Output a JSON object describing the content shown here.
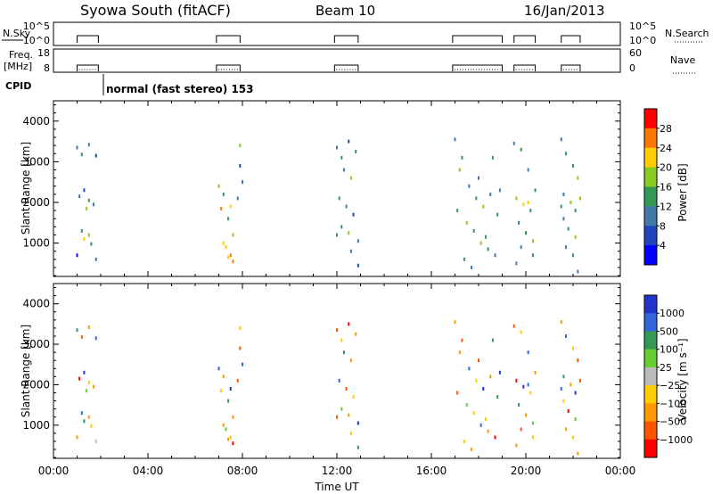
{
  "header": {
    "station": "Syowa South (fitACF)",
    "beam": "Beam 10",
    "date": "16/Jan/2013"
  },
  "strip_panels": {
    "nsky": {
      "label": "N.Sky",
      "ticks": [
        "10^5",
        "10^0"
      ]
    },
    "nsearch": {
      "label": "N.Search",
      "ticks": [
        "10^5",
        "10^0"
      ]
    },
    "freq": {
      "label_line1": "Freq.",
      "label_line2": "[MHz]",
      "ticks": [
        "18",
        "8"
      ]
    },
    "nave": {
      "label": "Nave",
      "ticks": [
        "60",
        "0"
      ]
    },
    "cpid": {
      "label": "CPID",
      "text": "normal (fast stereo) 153"
    },
    "operating_intervals_hours": [
      [
        1.0,
        1.9
      ],
      [
        6.9,
        7.9
      ],
      [
        11.9,
        12.9
      ],
      [
        16.9,
        19.0
      ],
      [
        19.5,
        20.4
      ],
      [
        21.5,
        22.3
      ]
    ]
  },
  "chart_data": [
    {
      "type": "scatter",
      "name": "power-panel",
      "xlabel": "",
      "ylabel": "Slant Range [km]",
      "xlim": [
        0,
        24
      ],
      "ylim": [
        180,
        4500
      ],
      "yticks": [
        "1000",
        "2000",
        "3000",
        "4000"
      ],
      "colorbar": {
        "label": "Power [dB]",
        "ticks": [
          "28",
          "24",
          "20",
          "16",
          "12",
          "8",
          "4"
        ],
        "colors": [
          "#ff0000",
          "#ff7700",
          "#ffcc00",
          "#88cc22",
          "#339955",
          "#4477aa",
          "#2244bb",
          "#0000ff"
        ]
      },
      "points": [
        [
          1.0,
          3350,
          5
        ],
        [
          1.2,
          3180,
          4
        ],
        [
          1.5,
          3420,
          5
        ],
        [
          1.8,
          3150,
          6
        ],
        [
          1.1,
          2150,
          5
        ],
        [
          1.3,
          2300,
          6
        ],
        [
          1.5,
          2050,
          4
        ],
        [
          1.7,
          1950,
          5
        ],
        [
          1.4,
          1850,
          3
        ],
        [
          1.2,
          1300,
          4
        ],
        [
          1.5,
          1200,
          3
        ],
        [
          1.3,
          1100,
          2
        ],
        [
          1.6,
          980,
          4
        ],
        [
          1.0,
          700,
          7
        ],
        [
          1.8,
          600,
          5
        ],
        [
          7.0,
          2400,
          3
        ],
        [
          7.2,
          2200,
          4
        ],
        [
          7.5,
          1900,
          2
        ],
        [
          7.8,
          2100,
          5
        ],
        [
          7.1,
          1850,
          1
        ],
        [
          7.4,
          1600,
          4
        ],
        [
          7.6,
          1200,
          3
        ],
        [
          7.3,
          900,
          2
        ],
        [
          7.5,
          700,
          1
        ],
        [
          7.6,
          550,
          1
        ],
        [
          7.4,
          650,
          2
        ],
        [
          7.9,
          2900,
          6
        ],
        [
          7.9,
          3400,
          3
        ],
        [
          7.2,
          1000,
          2
        ],
        [
          8.0,
          2500,
          5
        ],
        [
          12.0,
          3350,
          5
        ],
        [
          12.2,
          3100,
          4
        ],
        [
          12.5,
          3500,
          6
        ],
        [
          12.8,
          3250,
          4
        ],
        [
          12.3,
          2800,
          5
        ],
        [
          12.6,
          2600,
          3
        ],
        [
          12.1,
          2100,
          4
        ],
        [
          12.4,
          1900,
          5
        ],
        [
          12.7,
          1700,
          6
        ],
        [
          12.2,
          1400,
          4
        ],
        [
          12.5,
          1250,
          3
        ],
        [
          12.9,
          1050,
          5
        ],
        [
          12.0,
          1200,
          4
        ],
        [
          12.6,
          800,
          5
        ],
        [
          12.9,
          450,
          6
        ],
        [
          17.0,
          3550,
          5
        ],
        [
          17.3,
          3100,
          4
        ],
        [
          17.6,
          2400,
          5
        ],
        [
          17.9,
          2100,
          4
        ],
        [
          18.2,
          1900,
          3
        ],
        [
          18.5,
          2200,
          5
        ],
        [
          18.8,
          1700,
          4
        ],
        [
          17.1,
          1800,
          4
        ],
        [
          17.5,
          1500,
          3
        ],
        [
          17.8,
          1300,
          4
        ],
        [
          18.1,
          1000,
          3
        ],
        [
          18.4,
          850,
          4
        ],
        [
          18.7,
          700,
          5
        ],
        [
          17.4,
          600,
          4
        ],
        [
          18.0,
          2600,
          5
        ],
        [
          18.6,
          3100,
          4
        ],
        [
          17.2,
          2800,
          3
        ],
        [
          18.9,
          2300,
          5
        ],
        [
          18.3,
          1150,
          4
        ],
        [
          17.7,
          400,
          5
        ],
        [
          19.5,
          3450,
          5
        ],
        [
          19.8,
          3300,
          4
        ],
        [
          20.1,
          2800,
          5
        ],
        [
          20.4,
          2300,
          4
        ],
        [
          19.6,
          2100,
          3
        ],
        [
          19.9,
          1950,
          2
        ],
        [
          20.2,
          1800,
          4
        ],
        [
          19.7,
          1500,
          5
        ],
        [
          20.0,
          1250,
          4
        ],
        [
          20.3,
          1050,
          3
        ],
        [
          19.8,
          900,
          5
        ],
        [
          20.3,
          700,
          4
        ],
        [
          19.6,
          500,
          5
        ],
        [
          20.1,
          2000,
          2
        ],
        [
          21.5,
          3550,
          5
        ],
        [
          21.7,
          3200,
          4
        ],
        [
          22.0,
          2900,
          4
        ],
        [
          22.2,
          2600,
          3
        ],
        [
          21.6,
          2200,
          5
        ],
        [
          21.9,
          2000,
          3
        ],
        [
          22.1,
          1800,
          4
        ],
        [
          21.6,
          1600,
          5
        ],
        [
          21.8,
          1350,
          4
        ],
        [
          22.1,
          1150,
          3
        ],
        [
          21.7,
          900,
          5
        ],
        [
          22.0,
          700,
          4
        ],
        [
          22.3,
          2100,
          3
        ],
        [
          21.5,
          1900,
          4
        ],
        [
          22.2,
          300,
          5
        ]
      ]
    },
    {
      "type": "scatter",
      "name": "velocity-panel",
      "xlabel": "Time UT",
      "ylabel": "Slant Range [km]",
      "xlim": [
        0,
        24
      ],
      "ylim": [
        180,
        4500
      ],
      "xticks": [
        "00:00",
        "04:00",
        "08:00",
        "12:00",
        "16:00",
        "20:00",
        "00:00"
      ],
      "yticks": [
        "1000",
        "2000",
        "3000",
        "4000"
      ],
      "colorbar": {
        "label": "Velocity [m s⁻¹]",
        "ticks": [
          "1000",
          "500",
          "100",
          "25",
          "−25",
          "−100",
          "−500",
          "−1000"
        ],
        "colors": [
          "#2233cc",
          "#3366dd",
          "#339955",
          "#66cc33",
          "#bbbbbb",
          "#ffcc00",
          "#ff9900",
          "#ff5500",
          "#ff0000"
        ]
      },
      "points": [
        [
          1.0,
          3350,
          2
        ],
        [
          1.2,
          3180,
          7
        ],
        [
          1.5,
          3420,
          6
        ],
        [
          1.8,
          3150,
          1
        ],
        [
          1.1,
          2150,
          8
        ],
        [
          1.3,
          2300,
          0
        ],
        [
          1.5,
          2050,
          5
        ],
        [
          1.7,
          1950,
          6
        ],
        [
          1.4,
          1850,
          3
        ],
        [
          1.2,
          1300,
          1
        ],
        [
          1.5,
          1200,
          6
        ],
        [
          1.3,
          1100,
          2
        ],
        [
          1.6,
          980,
          5
        ],
        [
          1.0,
          700,
          6
        ],
        [
          1.8,
          600,
          4
        ],
        [
          7.0,
          2400,
          1
        ],
        [
          7.2,
          2200,
          6
        ],
        [
          7.5,
          1900,
          0
        ],
        [
          7.8,
          2100,
          7
        ],
        [
          7.1,
          1850,
          5
        ],
        [
          7.4,
          1600,
          2
        ],
        [
          7.6,
          1200,
          6
        ],
        [
          7.3,
          900,
          3
        ],
        [
          7.5,
          700,
          5
        ],
        [
          7.6,
          550,
          8
        ],
        [
          7.4,
          650,
          6
        ],
        [
          7.9,
          2900,
          7
        ],
        [
          7.9,
          3400,
          5
        ],
        [
          7.2,
          1000,
          6
        ],
        [
          8.0,
          2500,
          1
        ],
        [
          12.0,
          3350,
          7
        ],
        [
          12.2,
          3100,
          5
        ],
        [
          12.5,
          3500,
          8
        ],
        [
          12.8,
          3250,
          6
        ],
        [
          12.3,
          2800,
          2
        ],
        [
          12.6,
          2600,
          6
        ],
        [
          12.1,
          2100,
          1
        ],
        [
          12.4,
          1900,
          7
        ],
        [
          12.7,
          1700,
          5
        ],
        [
          12.2,
          1400,
          3
        ],
        [
          12.5,
          1250,
          6
        ],
        [
          12.9,
          1050,
          0
        ],
        [
          12.0,
          1200,
          7
        ],
        [
          12.6,
          800,
          5
        ],
        [
          12.9,
          450,
          2
        ],
        [
          17.0,
          3550,
          6
        ],
        [
          17.3,
          3100,
          7
        ],
        [
          17.6,
          2400,
          1
        ],
        [
          17.9,
          2100,
          5
        ],
        [
          18.2,
          1900,
          0
        ],
        [
          18.5,
          2200,
          6
        ],
        [
          18.8,
          1700,
          2
        ],
        [
          17.1,
          1800,
          7
        ],
        [
          17.5,
          1500,
          3
        ],
        [
          17.8,
          1300,
          5
        ],
        [
          18.1,
          1000,
          1
        ],
        [
          18.4,
          850,
          6
        ],
        [
          18.7,
          700,
          8
        ],
        [
          17.4,
          600,
          5
        ],
        [
          18.0,
          2600,
          7
        ],
        [
          18.6,
          3100,
          2
        ],
        [
          17.2,
          2800,
          6
        ],
        [
          18.9,
          2300,
          0
        ],
        [
          18.3,
          1150,
          5
        ],
        [
          17.7,
          400,
          6
        ],
        [
          19.5,
          3450,
          7
        ],
        [
          19.8,
          3300,
          5
        ],
        [
          20.1,
          2800,
          1
        ],
        [
          20.4,
          2300,
          6
        ],
        [
          19.6,
          2100,
          8
        ],
        [
          19.9,
          1950,
          0
        ],
        [
          20.2,
          1800,
          5
        ],
        [
          19.7,
          1500,
          2
        ],
        [
          20.0,
          1250,
          6
        ],
        [
          20.3,
          1050,
          3
        ],
        [
          19.8,
          900,
          7
        ],
        [
          20.3,
          700,
          5
        ],
        [
          19.6,
          500,
          6
        ],
        [
          20.1,
          2000,
          1
        ],
        [
          21.5,
          3550,
          6
        ],
        [
          21.7,
          3200,
          1
        ],
        [
          22.0,
          2900,
          5
        ],
        [
          22.2,
          2600,
          7
        ],
        [
          21.6,
          2200,
          2
        ],
        [
          21.9,
          2000,
          6
        ],
        [
          22.1,
          1800,
          0
        ],
        [
          21.6,
          1600,
          5
        ],
        [
          21.8,
          1350,
          8
        ],
        [
          22.1,
          1150,
          3
        ],
        [
          21.7,
          900,
          6
        ],
        [
          22.0,
          700,
          5
        ],
        [
          22.3,
          2100,
          7
        ],
        [
          21.5,
          1900,
          1
        ],
        [
          22.2,
          300,
          6
        ]
      ]
    }
  ]
}
